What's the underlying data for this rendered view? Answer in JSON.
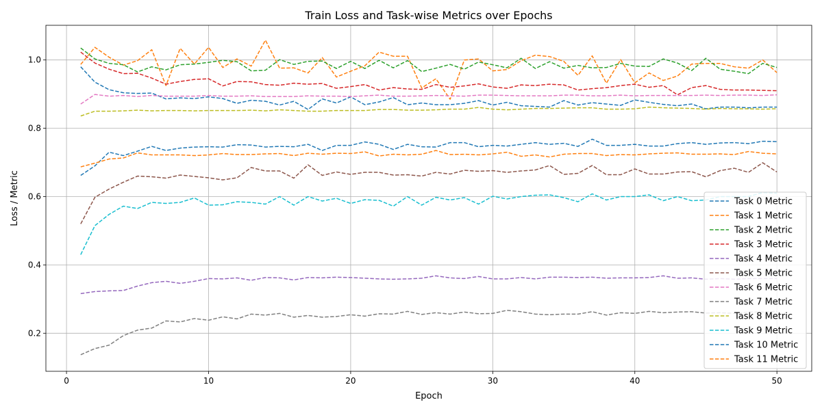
{
  "chart_data": {
    "type": "line",
    "title": "Train Loss and Task-wise Metrics over Epochs",
    "xlabel": "Epoch",
    "ylabel": "Loss / Metric",
    "xlim": [
      -1.45,
      52.45
    ],
    "ylim": [
      0.0885,
      1.1015
    ],
    "xticks": [
      0,
      10,
      20,
      30,
      40,
      50
    ],
    "yticks": [
      0.2,
      0.4,
      0.6,
      0.8,
      1.0
    ],
    "grid": true,
    "legend_position": "lower-right",
    "line_style": "dashed",
    "x": [
      1,
      2,
      3,
      4,
      5,
      6,
      7,
      8,
      9,
      10,
      11,
      12,
      13,
      14,
      15,
      16,
      17,
      18,
      19,
      20,
      21,
      22,
      23,
      24,
      25,
      26,
      27,
      28,
      29,
      30,
      31,
      32,
      33,
      34,
      35,
      36,
      37,
      38,
      39,
      40,
      41,
      42,
      43,
      44,
      45,
      46,
      47,
      48,
      49,
      50
    ],
    "series": [
      {
        "name": "Task 0 Metric",
        "color": "#1f77b4",
        "values": [
          0.98,
          0.935,
          0.913,
          0.904,
          0.902,
          0.903,
          0.886,
          0.889,
          0.887,
          0.892,
          0.887,
          0.873,
          0.882,
          0.879,
          0.868,
          0.879,
          0.855,
          0.886,
          0.874,
          0.892,
          0.869,
          0.877,
          0.89,
          0.869,
          0.874,
          0.869,
          0.869,
          0.873,
          0.881,
          0.868,
          0.876,
          0.866,
          0.864,
          0.862,
          0.881,
          0.868,
          0.875,
          0.871,
          0.867,
          0.883,
          0.876,
          0.87,
          0.866,
          0.871,
          0.857,
          0.862,
          0.862,
          0.86,
          0.862,
          0.862
        ]
      },
      {
        "name": "Task 1 Metric",
        "color": "#ff7f0e",
        "values": [
          0.987,
          1.037,
          1.008,
          0.985,
          0.998,
          1.03,
          0.925,
          1.034,
          0.988,
          1.037,
          0.978,
          1.003,
          0.982,
          1.058,
          0.976,
          0.977,
          0.962,
          1.007,
          0.95,
          0.967,
          0.983,
          1.023,
          1.011,
          1.011,
          0.918,
          0.945,
          0.885,
          1.0,
          1.003,
          0.968,
          0.972,
          0.998,
          1.014,
          1.01,
          0.996,
          0.955,
          1.012,
          0.932,
          1.001,
          0.933,
          0.962,
          0.94,
          0.953,
          0.988,
          0.99,
          0.99,
          0.98,
          0.976,
          1.0,
          0.963
        ]
      },
      {
        "name": "Task 2 Metric",
        "color": "#2ca02c",
        "values": [
          1.035,
          1.003,
          0.99,
          0.986,
          0.965,
          0.98,
          0.971,
          0.986,
          0.988,
          0.993,
          0.999,
          0.995,
          0.968,
          0.97,
          1.001,
          0.987,
          0.996,
          0.997,
          0.975,
          0.996,
          0.975,
          0.999,
          0.977,
          0.998,
          0.966,
          0.976,
          0.987,
          0.973,
          0.994,
          0.986,
          0.977,
          1.005,
          0.975,
          0.995,
          0.976,
          0.984,
          0.977,
          0.978,
          0.99,
          0.982,
          0.981,
          1.003,
          0.991,
          0.969,
          1.005,
          0.973,
          0.967,
          0.96,
          0.99,
          0.978
        ]
      },
      {
        "name": "Task 3 Metric",
        "color": "#d62728",
        "values": [
          1.023,
          0.991,
          0.973,
          0.96,
          0.961,
          0.947,
          0.929,
          0.937,
          0.943,
          0.945,
          0.924,
          0.937,
          0.936,
          0.928,
          0.926,
          0.932,
          0.929,
          0.931,
          0.917,
          0.922,
          0.928,
          0.912,
          0.919,
          0.915,
          0.914,
          0.928,
          0.92,
          0.924,
          0.93,
          0.921,
          0.917,
          0.927,
          0.925,
          0.929,
          0.927,
          0.912,
          0.916,
          0.919,
          0.925,
          0.929,
          0.92,
          0.925,
          0.898,
          0.919,
          0.925,
          0.914,
          0.912,
          0.912,
          0.911,
          0.91
        ]
      },
      {
        "name": "Task 4 Metric",
        "color": "#9467bd",
        "values": [
          0.316,
          0.322,
          0.324,
          0.325,
          0.338,
          0.348,
          0.352,
          0.346,
          0.352,
          0.36,
          0.359,
          0.362,
          0.355,
          0.363,
          0.362,
          0.356,
          0.363,
          0.362,
          0.364,
          0.363,
          0.361,
          0.359,
          0.358,
          0.359,
          0.361,
          0.368,
          0.362,
          0.36,
          0.366,
          0.359,
          0.359,
          0.363,
          0.359,
          0.364,
          0.364,
          0.363,
          0.364,
          0.361,
          0.362,
          0.362,
          0.363,
          0.368,
          0.361,
          0.362,
          0.358,
          0.36,
          0.358,
          0.36,
          0.36,
          0.36
        ]
      },
      {
        "name": "Task 5 Metric",
        "color": "#8c564b",
        "values": [
          0.52,
          0.598,
          0.622,
          0.642,
          0.66,
          0.658,
          0.654,
          0.663,
          0.659,
          0.655,
          0.649,
          0.655,
          0.685,
          0.675,
          0.675,
          0.654,
          0.693,
          0.662,
          0.672,
          0.665,
          0.671,
          0.671,
          0.663,
          0.664,
          0.66,
          0.671,
          0.666,
          0.677,
          0.674,
          0.676,
          0.671,
          0.675,
          0.678,
          0.691,
          0.665,
          0.668,
          0.691,
          0.664,
          0.664,
          0.681,
          0.666,
          0.666,
          0.672,
          0.673,
          0.658,
          0.676,
          0.683,
          0.671,
          0.699,
          0.672
        ]
      },
      {
        "name": "Task 6 Metric",
        "color": "#e377c2",
        "values": [
          0.871,
          0.899,
          0.894,
          0.896,
          0.893,
          0.896,
          0.894,
          0.894,
          0.894,
          0.896,
          0.894,
          0.894,
          0.895,
          0.893,
          0.893,
          0.893,
          0.895,
          0.894,
          0.894,
          0.893,
          0.895,
          0.897,
          0.894,
          0.894,
          0.895,
          0.896,
          0.895,
          0.894,
          0.897,
          0.897,
          0.896,
          0.895,
          0.895,
          0.895,
          0.897,
          0.897,
          0.895,
          0.895,
          0.897,
          0.895,
          0.896,
          0.896,
          0.896,
          0.896,
          0.897,
          0.896,
          0.897,
          0.897,
          0.896,
          0.898
        ]
      },
      {
        "name": "Task 7 Metric",
        "color": "#7f7f7f",
        "values": [
          0.137,
          0.155,
          0.165,
          0.193,
          0.209,
          0.215,
          0.236,
          0.233,
          0.243,
          0.238,
          0.248,
          0.242,
          0.256,
          0.253,
          0.258,
          0.247,
          0.252,
          0.247,
          0.249,
          0.254,
          0.25,
          0.257,
          0.256,
          0.264,
          0.255,
          0.26,
          0.256,
          0.262,
          0.257,
          0.258,
          0.267,
          0.263,
          0.256,
          0.254,
          0.256,
          0.256,
          0.263,
          0.253,
          0.26,
          0.258,
          0.264,
          0.26,
          0.262,
          0.263,
          0.259,
          0.26,
          0.258,
          0.262,
          0.262,
          0.264
        ]
      },
      {
        "name": "Task 8 Metric",
        "color": "#bcbd22",
        "values": [
          0.836,
          0.85,
          0.85,
          0.851,
          0.853,
          0.851,
          0.852,
          0.852,
          0.851,
          0.852,
          0.852,
          0.852,
          0.853,
          0.851,
          0.854,
          0.852,
          0.85,
          0.85,
          0.852,
          0.852,
          0.852,
          0.855,
          0.855,
          0.853,
          0.853,
          0.854,
          0.856,
          0.856,
          0.861,
          0.856,
          0.854,
          0.856,
          0.858,
          0.858,
          0.859,
          0.86,
          0.86,
          0.856,
          0.856,
          0.857,
          0.862,
          0.86,
          0.859,
          0.858,
          0.856,
          0.858,
          0.857,
          0.857,
          0.856,
          0.857
        ]
      },
      {
        "name": "Task 9 Metric",
        "color": "#17becf",
        "values": [
          0.43,
          0.515,
          0.548,
          0.572,
          0.565,
          0.583,
          0.58,
          0.583,
          0.596,
          0.575,
          0.576,
          0.585,
          0.583,
          0.578,
          0.6,
          0.575,
          0.6,
          0.587,
          0.595,
          0.58,
          0.591,
          0.589,
          0.572,
          0.6,
          0.575,
          0.598,
          0.59,
          0.597,
          0.578,
          0.601,
          0.593,
          0.6,
          0.604,
          0.605,
          0.597,
          0.585,
          0.608,
          0.59,
          0.6,
          0.6,
          0.605,
          0.588,
          0.6,
          0.588,
          0.59,
          0.6,
          0.6,
          0.6,
          0.612,
          0.61
        ]
      },
      {
        "name": "Task 10 Metric",
        "color": "#1f77b4",
        "values": [
          0.662,
          0.69,
          0.73,
          0.72,
          0.733,
          0.747,
          0.735,
          0.742,
          0.745,
          0.746,
          0.745,
          0.752,
          0.751,
          0.745,
          0.747,
          0.746,
          0.753,
          0.735,
          0.75,
          0.75,
          0.76,
          0.753,
          0.738,
          0.753,
          0.746,
          0.745,
          0.758,
          0.758,
          0.746,
          0.75,
          0.748,
          0.753,
          0.758,
          0.753,
          0.756,
          0.747,
          0.768,
          0.75,
          0.75,
          0.753,
          0.748,
          0.748,
          0.755,
          0.758,
          0.753,
          0.757,
          0.758,
          0.755,
          0.762,
          0.761
        ]
      },
      {
        "name": "Task 11 Metric",
        "color": "#ff7f0e",
        "values": [
          0.687,
          0.698,
          0.71,
          0.713,
          0.728,
          0.722,
          0.722,
          0.722,
          0.72,
          0.722,
          0.726,
          0.723,
          0.723,
          0.725,
          0.726,
          0.72,
          0.727,
          0.724,
          0.727,
          0.726,
          0.731,
          0.719,
          0.724,
          0.722,
          0.724,
          0.735,
          0.723,
          0.724,
          0.722,
          0.725,
          0.73,
          0.718,
          0.722,
          0.716,
          0.724,
          0.726,
          0.726,
          0.72,
          0.723,
          0.722,
          0.725,
          0.727,
          0.728,
          0.724,
          0.724,
          0.725,
          0.723,
          0.732,
          0.727,
          0.725
        ]
      }
    ]
  }
}
